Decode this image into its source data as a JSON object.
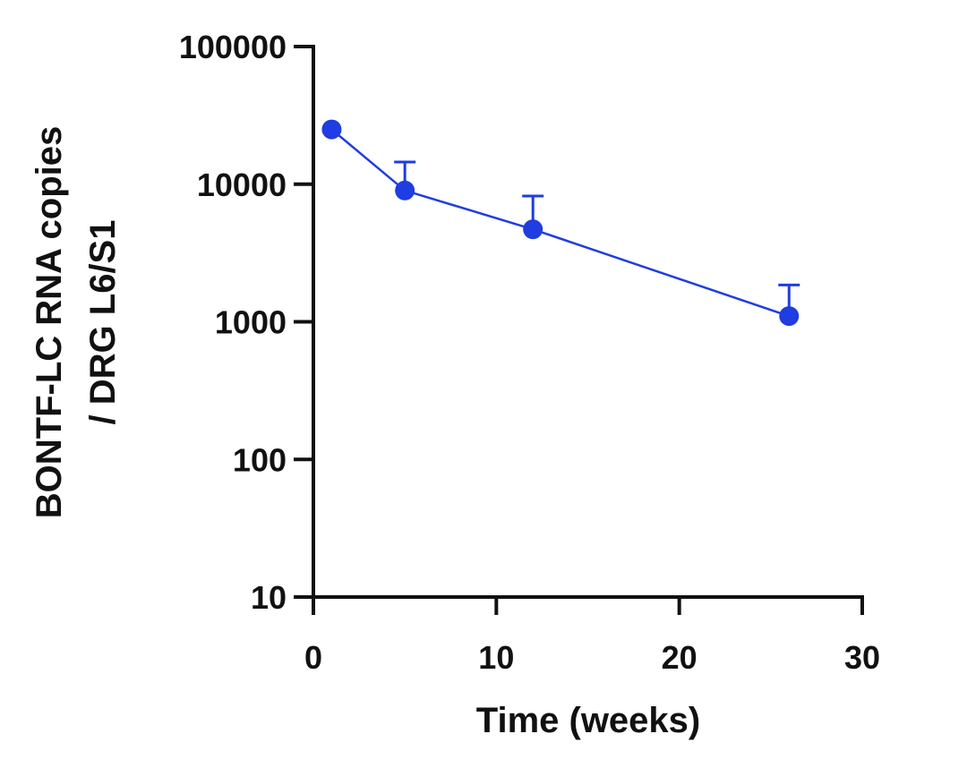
{
  "chart_data": {
    "type": "line",
    "title": "",
    "xlabel": "Time (weeks)",
    "ylabel_lines": [
      "BONTF-LC RNA copies",
      "/ DRG L6/S1"
    ],
    "xlim": [
      0,
      30
    ],
    "ylim": [
      10,
      100000
    ],
    "yscale": "log",
    "x_ticks": [
      0,
      10,
      20,
      30
    ],
    "x_tick_labels": [
      "0",
      "10",
      "20",
      "30"
    ],
    "y_ticks": [
      10,
      100,
      1000,
      10000,
      100000
    ],
    "y_tick_labels": [
      "10",
      "100",
      "1000",
      "10000",
      "100000"
    ],
    "grid": false,
    "legend": "none",
    "color": "#1f3de0",
    "series": [
      {
        "x": [
          1,
          5,
          12,
          26
        ],
        "y": [
          25000,
          9000,
          4700,
          1100
        ],
        "error_upper": [
          null,
          14500,
          8200,
          1850
        ]
      }
    ]
  }
}
